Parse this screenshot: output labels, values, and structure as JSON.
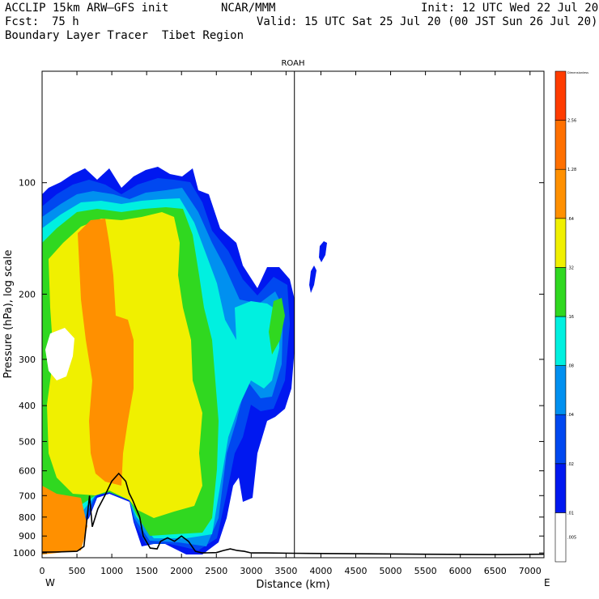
{
  "header": {
    "model": "ACCLIP 15km ARW–GFS init",
    "org": "NCAR/MMM",
    "init": "Init: 12 UTC Wed 22 Jul 20",
    "fcst_label": "Fcst:",
    "fcst_value": "75 h",
    "valid": "Valid: 15 UTC Sat 25 Jul 20 (00 JST Sun 26 Jul 20)",
    "field": "Boundary Layer Tracer  Tibet Region"
  },
  "colors": {
    "levels": [
      "#ffffff",
      "#0018f0",
      "#0048f0",
      "#0090f0",
      "#00f0e0",
      "#30d820",
      "#f0f000",
      "#ff9000",
      "#ff7000",
      "#ff3c00"
    ],
    "terrain_line": "#000000"
  },
  "chart_data": {
    "type": "heatmap",
    "title": "ROAH",
    "xlabel": "Distance (km)",
    "ylabel": "Pressure (hPa), log scale",
    "x_ticks": [
      0,
      500,
      1000,
      1500,
      2000,
      2500,
      3000,
      3500,
      4000,
      4500,
      5000,
      5500,
      6000,
      6500,
      7000
    ],
    "y_ticks": [
      100,
      200,
      300,
      400,
      500,
      600,
      700,
      800,
      900,
      1000
    ],
    "xlim": [
      0,
      7200
    ],
    "ylim": [
      1030,
      50
    ],
    "y_scale": "log",
    "x_end_labels": {
      "left": "W",
      "right": "E"
    },
    "vertical_marker_x": 3620,
    "colorbar": {
      "labels": [
        ".005",
        ".01",
        ".02",
        ".04",
        ".08",
        ".16",
        ".32",
        ".64",
        "1.28",
        "2.56",
        "Dimensionless"
      ]
    },
    "terrain": {
      "x": [
        0,
        200,
        500,
        600,
        680,
        720,
        800,
        900,
        1000,
        1100,
        1200,
        1250,
        1300,
        1400,
        1450,
        1550,
        1650,
        1700,
        1800,
        1900,
        2000,
        2100,
        2200,
        2300,
        2500,
        2600,
        2700,
        2800,
        2900,
        3000,
        3200,
        3600,
        4500,
        5500,
        6500,
        7200
      ],
      "y": [
        995,
        994,
        990,
        960,
        700,
        850,
        760,
        700,
        640,
        610,
        640,
        690,
        720,
        800,
        900,
        970,
        975,
        930,
        910,
        930,
        900,
        930,
        990,
        1000,
        998,
        985,
        975,
        985,
        990,
        1000,
        1000,
        1002,
        1005,
        1008,
        1010,
        1008
      ]
    }
  }
}
